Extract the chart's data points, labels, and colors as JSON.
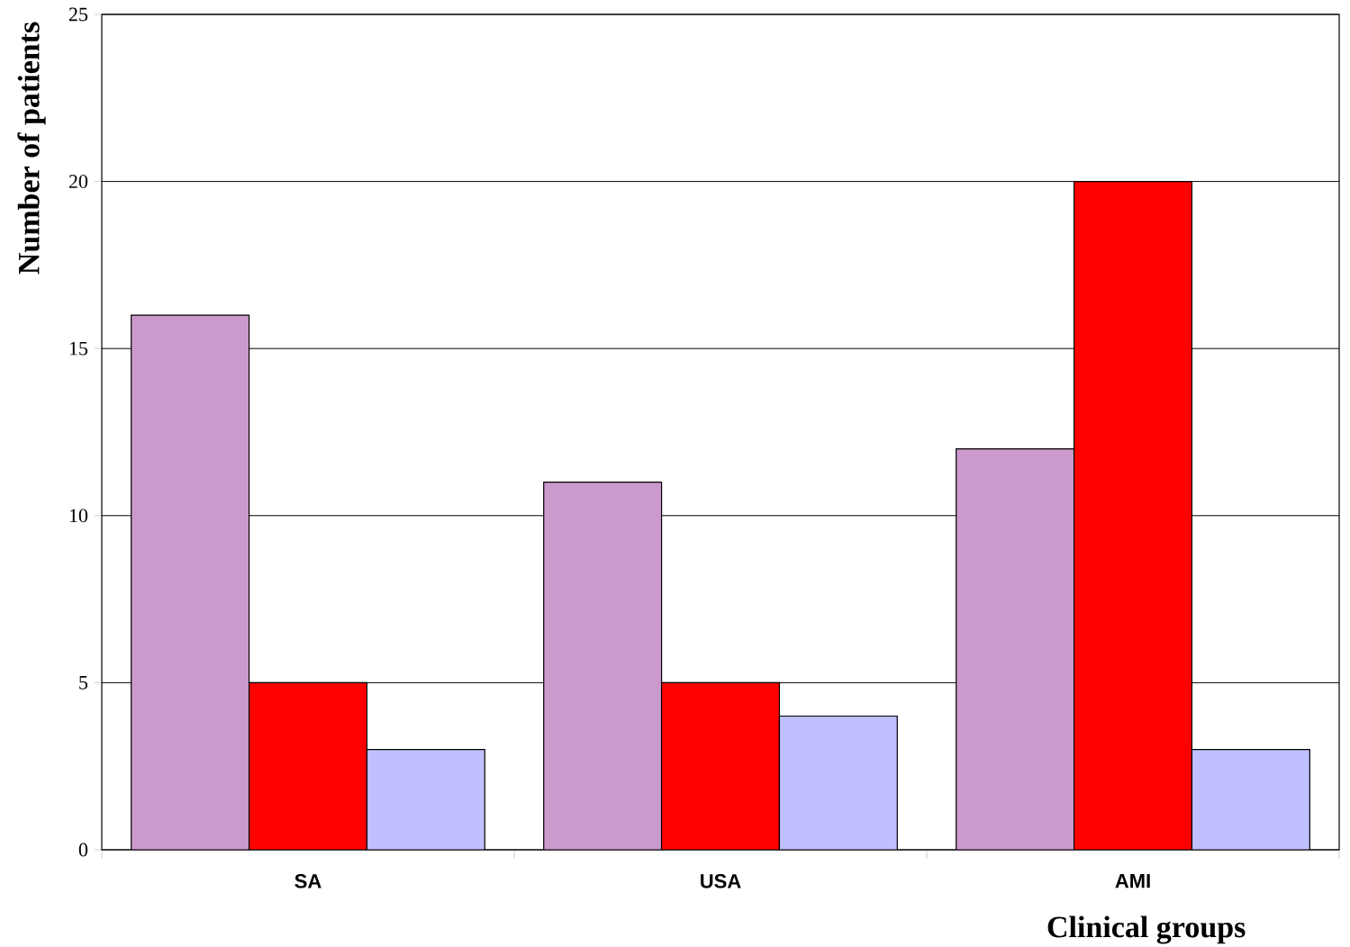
{
  "chart_data": {
    "type": "bar",
    "xlabel": "Clinical groups",
    "ylabel": "Number of patients",
    "categories": [
      "SA",
      "USA",
      "AMI"
    ],
    "series": [
      {
        "color": "#cc99cc",
        "values": [
          16,
          11,
          12
        ]
      },
      {
        "color": "#ff0000",
        "values": [
          5,
          5,
          20
        ]
      },
      {
        "color": "#c0c0ff",
        "values": [
          3,
          4,
          3
        ]
      }
    ],
    "ylim": [
      0,
      25
    ],
    "yticks": [
      0,
      5,
      10,
      15,
      20,
      25
    ],
    "grid": "y"
  }
}
